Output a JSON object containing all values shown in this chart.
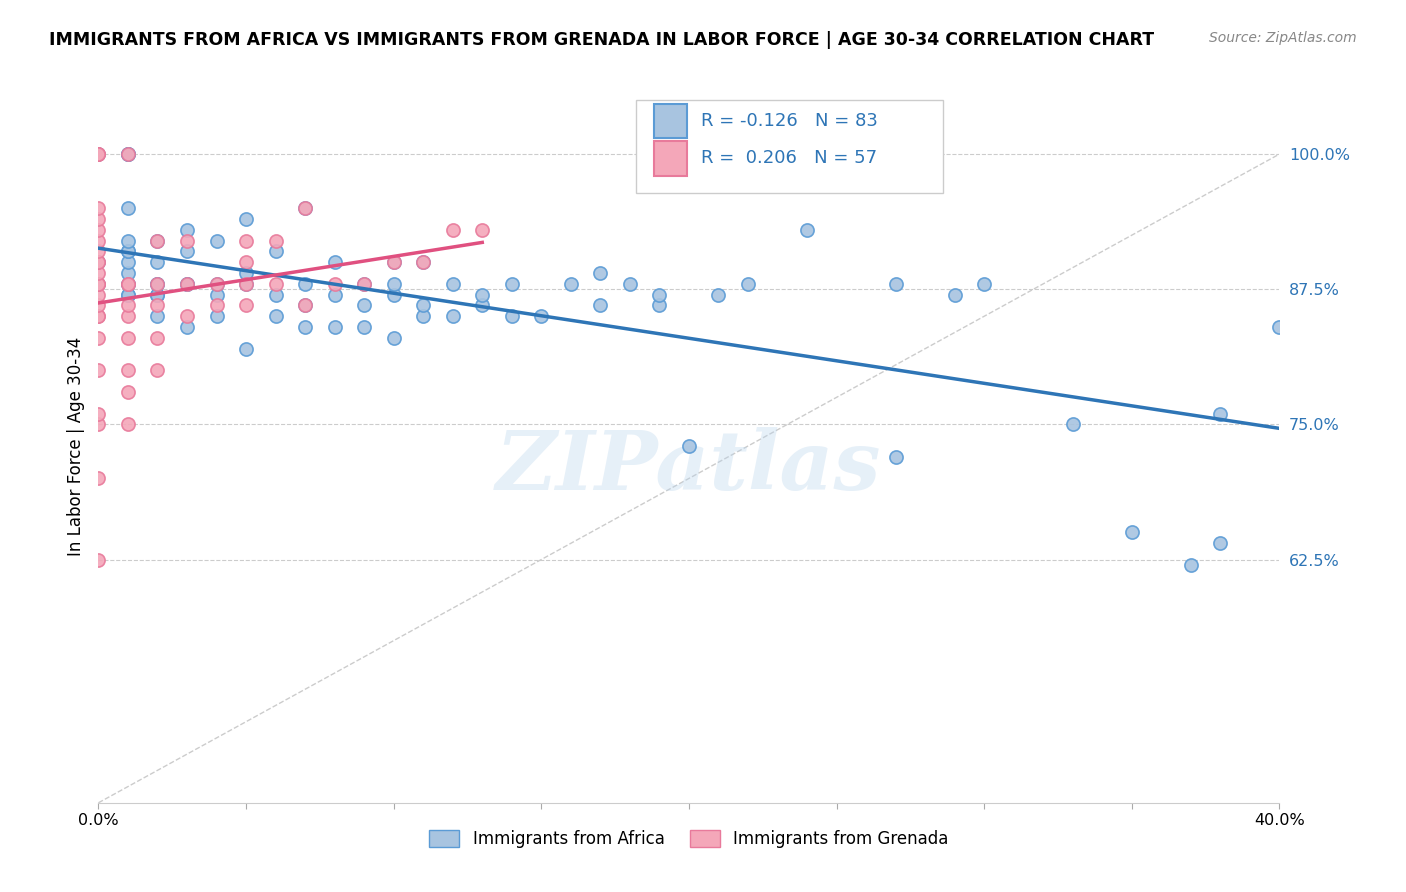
{
  "title": "IMMIGRANTS FROM AFRICA VS IMMIGRANTS FROM GRENADA IN LABOR FORCE | AGE 30-34 CORRELATION CHART",
  "source": "Source: ZipAtlas.com",
  "ylabel": "In Labor Force | Age 30-34",
  "xlim": [
    0.0,
    0.4
  ],
  "ylim": [
    0.4,
    1.06
  ],
  "yticks": [
    0.625,
    0.75,
    0.875,
    1.0
  ],
  "ytick_labels": [
    "62.5%",
    "75.0%",
    "87.5%",
    "100.0%"
  ],
  "xticks": [
    0.0,
    0.05,
    0.1,
    0.15,
    0.2,
    0.25,
    0.3,
    0.35,
    0.4
  ],
  "xtick_labels": [
    "0.0%",
    "",
    "",
    "",
    "",
    "",
    "",
    "",
    "40.0%"
  ],
  "africa_color": "#a8c4e0",
  "grenada_color": "#f4a7b9",
  "africa_edge": "#5b9bd5",
  "grenada_edge": "#e87a9b",
  "trend_africa_color": "#2e75b6",
  "trend_grenada_color": "#e05080",
  "diag_color": "#cccccc",
  "legend_R_africa": "-0.126",
  "legend_N_africa": "83",
  "legend_R_grenada": "0.206",
  "legend_N_grenada": "57",
  "watermark": "ZIPatlas",
  "africa_x": [
    0.0,
    0.0,
    0.0,
    0.01,
    0.01,
    0.01,
    0.01,
    0.01,
    0.01,
    0.01,
    0.01,
    0.01,
    0.01,
    0.01,
    0.01,
    0.01,
    0.02,
    0.02,
    0.02,
    0.02,
    0.02,
    0.02,
    0.02,
    0.03,
    0.03,
    0.03,
    0.03,
    0.03,
    0.04,
    0.04,
    0.04,
    0.04,
    0.05,
    0.05,
    0.05,
    0.05,
    0.06,
    0.06,
    0.06,
    0.07,
    0.07,
    0.07,
    0.07,
    0.08,
    0.08,
    0.08,
    0.09,
    0.09,
    0.09,
    0.1,
    0.1,
    0.1,
    0.1,
    0.11,
    0.11,
    0.11,
    0.12,
    0.12,
    0.13,
    0.13,
    0.14,
    0.14,
    0.15,
    0.16,
    0.17,
    0.17,
    0.18,
    0.19,
    0.19,
    0.2,
    0.21,
    0.22,
    0.24,
    0.27,
    0.27,
    0.29,
    0.3,
    0.33,
    0.35,
    0.37,
    0.38,
    0.38,
    0.4
  ],
  "africa_y": [
    0.88,
    0.9,
    1.0,
    0.87,
    0.87,
    0.88,
    0.88,
    0.89,
    0.9,
    0.91,
    0.91,
    0.92,
    0.95,
    1.0,
    1.0,
    1.0,
    0.85,
    0.87,
    0.87,
    0.88,
    0.88,
    0.9,
    0.92,
    0.84,
    0.88,
    0.88,
    0.91,
    0.93,
    0.85,
    0.87,
    0.88,
    0.92,
    0.82,
    0.88,
    0.89,
    0.94,
    0.85,
    0.87,
    0.91,
    0.84,
    0.86,
    0.88,
    0.95,
    0.84,
    0.87,
    0.9,
    0.84,
    0.86,
    0.88,
    0.83,
    0.87,
    0.88,
    0.9,
    0.85,
    0.86,
    0.9,
    0.85,
    0.88,
    0.86,
    0.87,
    0.85,
    0.88,
    0.85,
    0.88,
    0.86,
    0.89,
    0.88,
    0.86,
    0.87,
    0.73,
    0.87,
    0.88,
    0.93,
    0.72,
    0.88,
    0.87,
    0.88,
    0.75,
    0.65,
    0.62,
    0.64,
    0.76,
    0.84
  ],
  "grenada_x": [
    0.0,
    0.0,
    0.0,
    0.0,
    0.0,
    0.0,
    0.0,
    0.0,
    0.0,
    0.0,
    0.0,
    0.0,
    0.0,
    0.0,
    0.0,
    0.0,
    0.0,
    0.0,
    0.0,
    0.0,
    0.0,
    0.0,
    0.0,
    0.0,
    0.01,
    0.01,
    0.01,
    0.01,
    0.01,
    0.01,
    0.01,
    0.01,
    0.01,
    0.02,
    0.02,
    0.02,
    0.02,
    0.02,
    0.03,
    0.03,
    0.03,
    0.04,
    0.04,
    0.05,
    0.05,
    0.05,
    0.05,
    0.06,
    0.06,
    0.07,
    0.07,
    0.08,
    0.09,
    0.1,
    0.11,
    0.12,
    0.13
  ],
  "grenada_y": [
    0.625,
    0.7,
    0.75,
    0.76,
    0.8,
    0.83,
    0.85,
    0.85,
    0.86,
    0.87,
    0.88,
    0.88,
    0.88,
    0.89,
    0.9,
    0.9,
    0.91,
    0.92,
    0.93,
    0.94,
    0.95,
    1.0,
    1.0,
    1.0,
    0.75,
    0.78,
    0.8,
    0.83,
    0.85,
    0.86,
    0.88,
    0.88,
    1.0,
    0.8,
    0.83,
    0.86,
    0.88,
    0.92,
    0.85,
    0.88,
    0.92,
    0.86,
    0.88,
    0.86,
    0.88,
    0.9,
    0.92,
    0.88,
    0.92,
    0.86,
    0.95,
    0.88,
    0.88,
    0.9,
    0.9,
    0.93,
    0.93
  ]
}
